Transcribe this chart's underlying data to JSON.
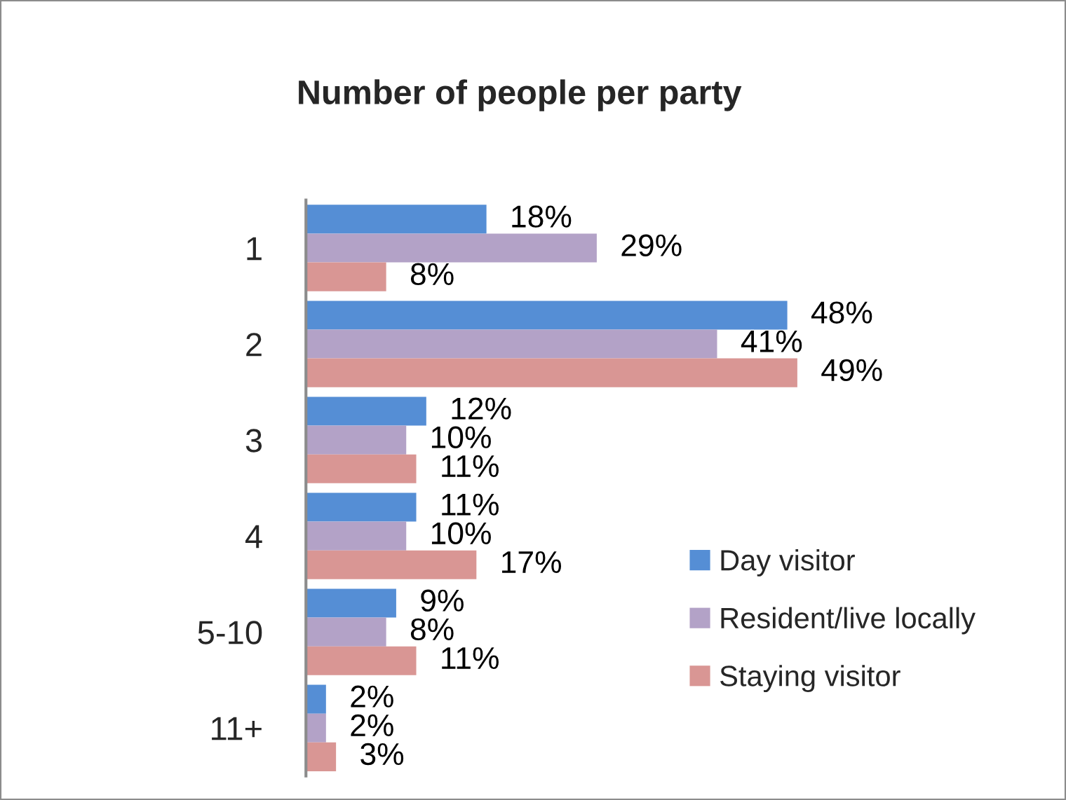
{
  "chart_data": {
    "type": "bar",
    "orientation": "horizontal",
    "title": "Number of people per party",
    "categories": [
      "1",
      "2",
      "3",
      "4",
      "5-10",
      "11+"
    ],
    "series": [
      {
        "name": "Day visitor",
        "color": "#558ed5",
        "values": [
          18,
          48,
          12,
          11,
          9,
          2
        ],
        "value_labels": [
          "18%",
          "48%",
          "12%",
          "11%",
          "9%",
          "2%"
        ]
      },
      {
        "name": "Resident/live locally",
        "color": "#b3a2c7",
        "values": [
          29,
          41,
          10,
          10,
          8,
          2
        ],
        "value_labels": [
          "29%",
          "41%",
          "10%",
          "10%",
          "8%",
          "2%"
        ]
      },
      {
        "name": "Staying visitor",
        "color": "#d99694",
        "values": [
          8,
          49,
          11,
          17,
          11,
          3
        ],
        "value_labels": [
          "8%",
          "49%",
          "11%",
          "17%",
          "11%",
          "3%"
        ]
      }
    ],
    "legend": "bottom right",
    "tick_labels": "y"
  }
}
